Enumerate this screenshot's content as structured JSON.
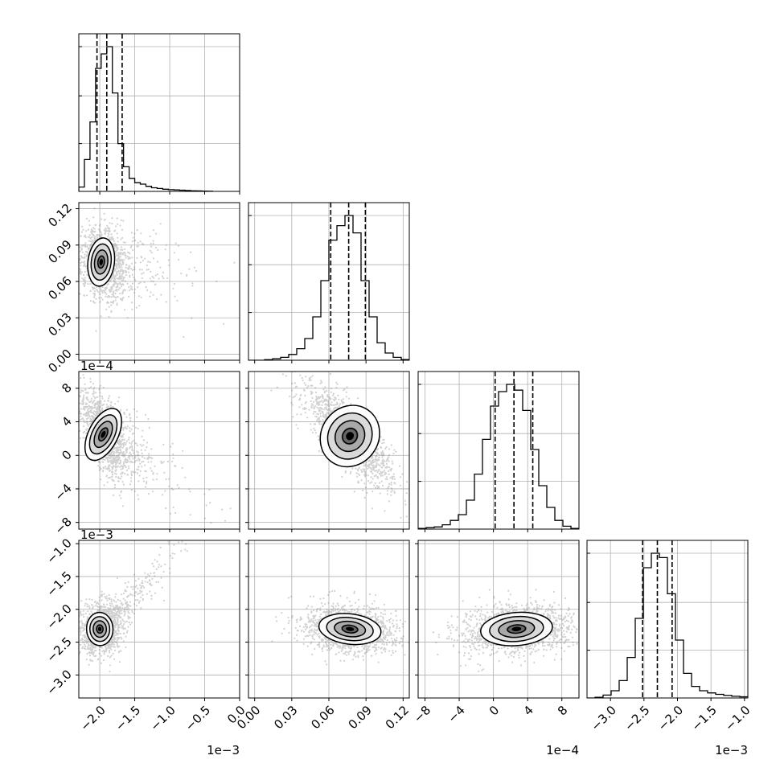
{
  "chart_data": {
    "type": "corner",
    "grid": true,
    "parameters": [
      {
        "range": [
          -2.3,
          0.0
        ],
        "offset_label": "1e−3",
        "ticks": [
          -2.0,
          -1.5,
          -1.0,
          -0.5,
          0.0
        ],
        "tick_labels": [
          "−2.0",
          "−1.5",
          "−1.0",
          "−0.5",
          "0.0"
        ],
        "quantiles": [
          -2.04,
          -1.9,
          -1.68
        ],
        "hist_peak": -1.9
      },
      {
        "range": [
          -0.005,
          0.125
        ],
        "offset_label": "",
        "ticks": [
          0.0,
          0.03,
          0.06,
          0.09,
          0.12
        ],
        "tick_labels": [
          "0.00",
          "0.03",
          "0.06",
          "0.09",
          "0.12"
        ],
        "quantiles": [
          0.0615,
          0.076,
          0.0895
        ],
        "hist_peak": 0.078
      },
      {
        "range": [
          -8.8,
          10.0
        ],
        "offset_label": "1e−4",
        "ticks": [
          -8,
          -4,
          0,
          4,
          8
        ],
        "tick_labels": [
          "−8",
          "−4",
          "0",
          "4",
          "8"
        ],
        "quantiles": [
          0.2,
          2.4,
          4.6
        ],
        "hist_peak": 2.5
      },
      {
        "range": [
          -3.35,
          -0.95
        ],
        "offset_label": "1e−3",
        "ticks": [
          -3.0,
          -2.5,
          -2.0,
          -1.5,
          -1.0
        ],
        "tick_labels": [
          "−3.0",
          "−2.5",
          "−2.0",
          "−1.5",
          "−1.0"
        ],
        "quantiles": [
          -2.52,
          -2.3,
          -2.08
        ],
        "hist_peak": -2.3
      }
    ],
    "histograms": [
      {
        "bins": [
          -2.3,
          -2.22,
          -2.14,
          -2.06,
          -1.98,
          -1.9,
          -1.82,
          -1.74,
          -1.66,
          -1.58,
          -1.5,
          -1.42,
          -1.34,
          -1.26,
          -1.18,
          -1.1,
          -1.02,
          -0.94,
          -0.86,
          -0.78,
          -0.7,
          -0.62,
          -0.54,
          -0.46,
          -0.38
        ],
        "counts": [
          0.03,
          0.22,
          0.48,
          0.85,
          0.95,
          1.0,
          0.68,
          0.33,
          0.17,
          0.09,
          0.06,
          0.05,
          0.035,
          0.025,
          0.02,
          0.015,
          0.012,
          0.01,
          0.008,
          0.006,
          0.004,
          0.003,
          0.002,
          0.001
        ]
      },
      {
        "bins": [
          -0.005,
          0.0015,
          0.008,
          0.0145,
          0.021,
          0.0275,
          0.034,
          0.0405,
          0.047,
          0.0535,
          0.06,
          0.0665,
          0.073,
          0.0795,
          0.086,
          0.0925,
          0.099,
          0.1055,
          0.112,
          0.1185,
          0.125
        ],
        "counts": [
          0.0,
          0.0,
          0.004,
          0.01,
          0.02,
          0.04,
          0.08,
          0.15,
          0.3,
          0.55,
          0.83,
          0.93,
          1.0,
          0.88,
          0.55,
          0.3,
          0.12,
          0.05,
          0.02,
          0.005
        ]
      },
      {
        "bins": [
          -8.8,
          -7.86,
          -6.92,
          -5.98,
          -5.04,
          -4.1,
          -3.16,
          -2.22,
          -1.28,
          -0.34,
          0.6,
          1.54,
          2.48,
          3.42,
          4.36,
          5.3,
          6.24,
          7.18,
          8.12,
          9.06,
          10.0
        ],
        "counts": [
          0.005,
          0.01,
          0.015,
          0.03,
          0.06,
          0.1,
          0.2,
          0.38,
          0.62,
          0.85,
          0.95,
          1.0,
          0.96,
          0.82,
          0.55,
          0.3,
          0.15,
          0.06,
          0.02,
          0.005
        ]
      },
      {
        "bins": [
          -3.35,
          -3.23,
          -3.11,
          -2.99,
          -2.87,
          -2.75,
          -2.63,
          -2.51,
          -2.39,
          -2.27,
          -2.15,
          -2.03,
          -1.91,
          -1.79,
          -1.67,
          -1.55,
          -1.43,
          -1.31,
          -1.19,
          -1.07,
          -0.95
        ],
        "counts": [
          0.0,
          0.005,
          0.02,
          0.05,
          0.12,
          0.28,
          0.55,
          0.9,
          1.0,
          0.97,
          0.72,
          0.4,
          0.17,
          0.08,
          0.05,
          0.035,
          0.025,
          0.018,
          0.012,
          0.008
        ]
      }
    ],
    "pairs": [
      {
        "x": 0,
        "y": 1,
        "center": [
          -1.98,
          0.076
        ],
        "sigma": [
          0.09,
          0.0095
        ],
        "corr": -0.15,
        "tail": true
      },
      {
        "x": 0,
        "y": 2,
        "center": [
          -1.95,
          2.5
        ],
        "sigma": [
          0.1,
          1.6
        ],
        "corr": -0.6,
        "tail": true
      },
      {
        "x": 1,
        "y": 2,
        "center": [
          0.077,
          2.3
        ],
        "sigma": [
          0.011,
          1.8
        ],
        "corr": -0.78,
        "tail": false
      },
      {
        "x": 0,
        "y": 3,
        "center": [
          -2.0,
          -2.3
        ],
        "sigma": [
          0.09,
          0.12
        ],
        "corr": 0.05,
        "tail": true
      },
      {
        "x": 1,
        "y": 3,
        "center": [
          0.077,
          -2.3
        ],
        "sigma": [
          0.012,
          0.11
        ],
        "corr": -0.15,
        "tail": false
      },
      {
        "x": 2,
        "y": 3,
        "center": [
          2.7,
          -2.3
        ],
        "sigma": [
          2.0,
          0.12
        ],
        "corr": 0.1,
        "tail": false
      }
    ],
    "contour_levels_sigma": [
      0.5,
      1.0,
      1.5,
      2.0
    ]
  }
}
